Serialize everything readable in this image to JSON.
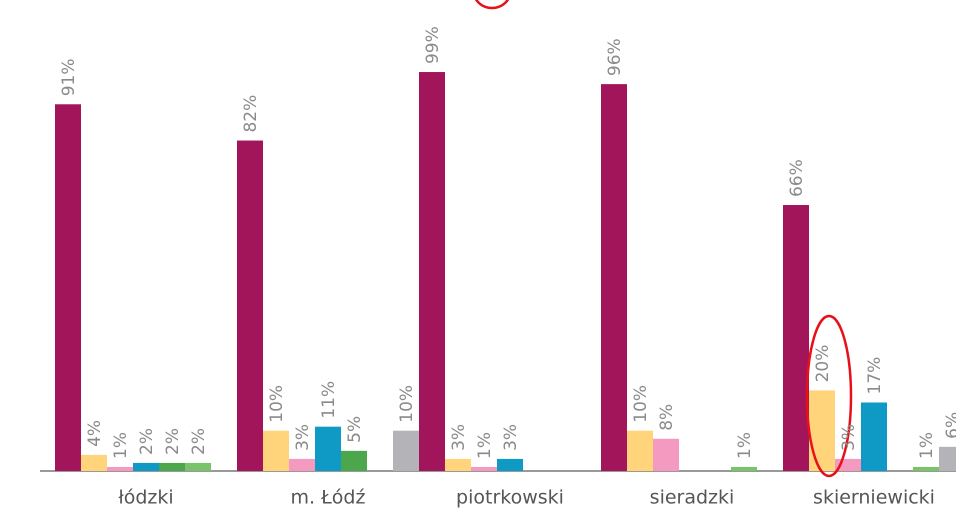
{
  "chart_data": {
    "type": "bar",
    "categories": [
      "łódzki",
      "m. Łódź",
      "piotrkowski",
      "sieradzki",
      "skierniewicki"
    ],
    "series": [
      {
        "color": "#a3155a",
        "values": [
          91,
          82,
          99,
          96,
          66
        ],
        "value_labels": [
          "91%",
          "82%",
          "99%",
          "96%",
          "66%"
        ]
      },
      {
        "color": "#ffd47a",
        "values": [
          4,
          10,
          3,
          10,
          20
        ],
        "value_labels": [
          "4%",
          "10%",
          "3%",
          "10%",
          "20%"
        ]
      },
      {
        "color": "#f49ac1",
        "values": [
          1,
          3,
          1,
          8,
          3
        ],
        "value_labels": [
          "1%",
          "3%",
          "1%",
          "8%",
          "3%"
        ]
      },
      {
        "color": "#0e9ac4",
        "values": [
          2,
          11,
          3,
          null,
          17
        ],
        "value_labels": [
          "2%",
          "11%",
          "3%",
          null,
          "17%"
        ]
      },
      {
        "color": "#4ca64c",
        "values": [
          2,
          5,
          null,
          null,
          null
        ],
        "value_labels": [
          "2%",
          "5%",
          null,
          null,
          null
        ]
      },
      {
        "color": "#7ac36a",
        "values": [
          2,
          null,
          null,
          1,
          1
        ],
        "value_labels": [
          "2%",
          null,
          null,
          "1%",
          "1%"
        ]
      },
      {
        "color": "#b4b4b8",
        "values": [
          null,
          10,
          null,
          null,
          6
        ],
        "value_labels": [
          null,
          "10%",
          null,
          null,
          "6%"
        ]
      }
    ]
  }
}
